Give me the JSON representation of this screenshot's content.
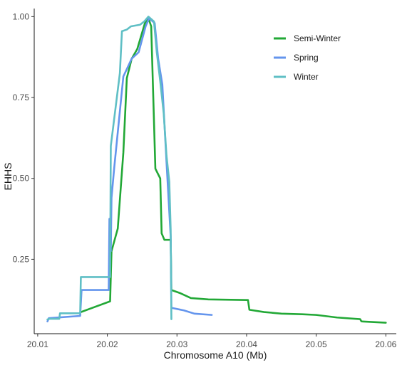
{
  "chart_data": {
    "type": "line",
    "xlabel": "Chromosome A10 (Mb)",
    "ylabel": "EHHS",
    "xlim": [
      20.0095,
      20.0615
    ],
    "ylim": [
      0.02,
      1.025
    ],
    "x_ticks": [
      20.01,
      20.02,
      20.03,
      20.04,
      20.05,
      20.06
    ],
    "x_tick_labels": [
      "20.01",
      "20.02",
      "20.03",
      "20.04",
      "20.05",
      "20.06"
    ],
    "y_ticks": [
      0.25,
      0.5,
      0.75,
      1.0
    ],
    "y_tick_labels": [
      "0.25",
      "0.50",
      "0.75",
      "1.00"
    ],
    "grid": false,
    "legend_position": "top-right",
    "series": [
      {
        "name": "Semi-Winter",
        "color": "#22a836",
        "points": [
          [
            20.0161,
            0.086
          ],
          [
            20.0204,
            0.12
          ],
          [
            20.0206,
            0.275
          ],
          [
            20.0215,
            0.345
          ],
          [
            20.0223,
            0.58
          ],
          [
            20.0228,
            0.81
          ],
          [
            20.0235,
            0.87
          ],
          [
            20.0243,
            0.9
          ],
          [
            20.0254,
            0.98
          ],
          [
            20.0259,
            0.995
          ],
          [
            20.0263,
            0.97
          ],
          [
            20.0269,
            0.53
          ],
          [
            20.0276,
            0.5
          ],
          [
            20.0278,
            0.33
          ],
          [
            20.0282,
            0.31
          ],
          [
            20.0291,
            0.31
          ],
          [
            20.0292,
            0.155
          ],
          [
            20.0305,
            0.145
          ],
          [
            20.032,
            0.13
          ],
          [
            20.0345,
            0.126
          ],
          [
            20.0402,
            0.124
          ],
          [
            20.0404,
            0.094
          ],
          [
            20.0425,
            0.087
          ],
          [
            20.045,
            0.082
          ],
          [
            20.048,
            0.08
          ],
          [
            20.05,
            0.078
          ],
          [
            20.053,
            0.07
          ],
          [
            20.0563,
            0.065
          ],
          [
            20.0565,
            0.058
          ],
          [
            20.06,
            0.054
          ]
        ]
      },
      {
        "name": "Spring",
        "color": "#6495ed",
        "points": [
          [
            20.0114,
            0.058
          ],
          [
            20.0116,
            0.068
          ],
          [
            20.0161,
            0.075
          ],
          [
            20.0163,
            0.155
          ],
          [
            20.0202,
            0.155
          ],
          [
            20.0203,
            0.375
          ],
          [
            20.0205,
            0.275
          ],
          [
            20.0206,
            0.44
          ],
          [
            20.021,
            0.535
          ],
          [
            20.0223,
            0.815
          ],
          [
            20.0235,
            0.87
          ],
          [
            20.0245,
            0.89
          ],
          [
            20.0255,
            0.97
          ],
          [
            20.026,
            0.995
          ],
          [
            20.0268,
            0.98
          ],
          [
            20.0273,
            0.87
          ],
          [
            20.0279,
            0.79
          ],
          [
            20.0285,
            0.55
          ],
          [
            20.0291,
            0.32
          ],
          [
            20.0292,
            0.1
          ],
          [
            20.031,
            0.092
          ],
          [
            20.0325,
            0.082
          ],
          [
            20.035,
            0.078
          ]
        ]
      },
      {
        "name": "Winter",
        "color": "#5fbfc5",
        "points": [
          [
            20.0114,
            0.064
          ],
          [
            20.0117,
            0.066
          ],
          [
            20.0131,
            0.066
          ],
          [
            20.0132,
            0.083
          ],
          [
            20.0161,
            0.083
          ],
          [
            20.0162,
            0.195
          ],
          [
            20.0204,
            0.195
          ],
          [
            20.0205,
            0.6
          ],
          [
            20.0218,
            0.825
          ],
          [
            20.0221,
            0.955
          ],
          [
            20.0228,
            0.96
          ],
          [
            20.0234,
            0.97
          ],
          [
            20.0247,
            0.975
          ],
          [
            20.0253,
            0.985
          ],
          [
            20.0259,
            1.0
          ],
          [
            20.0267,
            0.985
          ],
          [
            20.0271,
            0.89
          ],
          [
            20.0276,
            0.8
          ],
          [
            20.0281,
            0.7
          ],
          [
            20.0285,
            0.57
          ],
          [
            20.0289,
            0.49
          ],
          [
            20.0291,
            0.34
          ],
          [
            20.0292,
            0.065
          ]
        ]
      }
    ]
  }
}
